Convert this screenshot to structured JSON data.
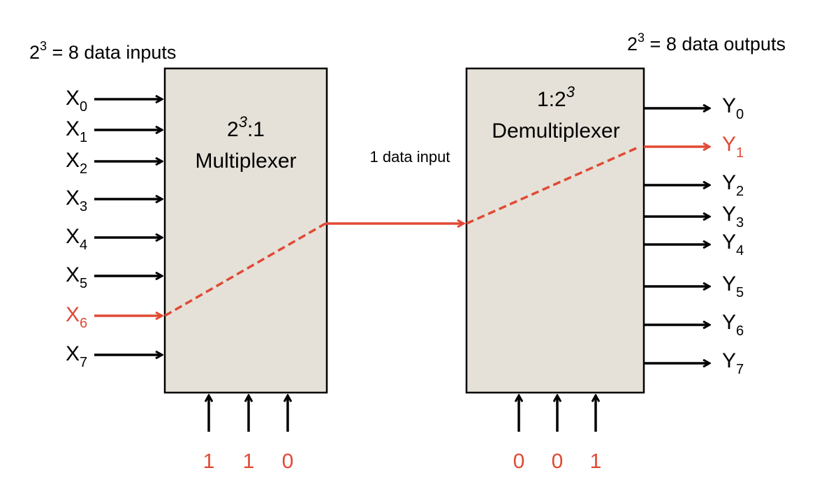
{
  "colors": {
    "red": "#e04a35",
    "black": "#000000",
    "box_fill": "#e5e1d8"
  },
  "left_header": {
    "base": "2",
    "exp": "3",
    "rest": " = 8 data inputs"
  },
  "right_header": {
    "base": "2",
    "exp": "3",
    "rest": " = 8 data outputs"
  },
  "mux": {
    "line1_base": "2",
    "line1_exp": "3",
    "line1_rest": ":1",
    "line2": "Multiplexer"
  },
  "demux": {
    "line1_base": "1:2",
    "line1_exp": "3",
    "line2": "Demultiplexer"
  },
  "link_label": "1 data input",
  "inputs": [
    {
      "letter": "X",
      "index": "0",
      "active": false
    },
    {
      "letter": "X",
      "index": "1",
      "active": false
    },
    {
      "letter": "X",
      "index": "2",
      "active": false
    },
    {
      "letter": "X",
      "index": "3",
      "active": false
    },
    {
      "letter": "X",
      "index": "4",
      "active": false
    },
    {
      "letter": "X",
      "index": "5",
      "active": false
    },
    {
      "letter": "X",
      "index": "6",
      "active": true
    },
    {
      "letter": "X",
      "index": "7",
      "active": false
    }
  ],
  "outputs": [
    {
      "letter": "Y",
      "index": "0",
      "active": false
    },
    {
      "letter": "Y",
      "index": "1",
      "active": true
    },
    {
      "letter": "Y",
      "index": "2",
      "active": false
    },
    {
      "letter": "Y",
      "index": "3",
      "active": false
    },
    {
      "letter": "Y",
      "index": "4",
      "active": false
    },
    {
      "letter": "Y",
      "index": "5",
      "active": false
    },
    {
      "letter": "Y",
      "index": "6",
      "active": false
    },
    {
      "letter": "Y",
      "index": "7",
      "active": false
    }
  ],
  "mux_select": [
    "1",
    "1",
    "0"
  ],
  "demux_select": [
    "0",
    "0",
    "1"
  ]
}
